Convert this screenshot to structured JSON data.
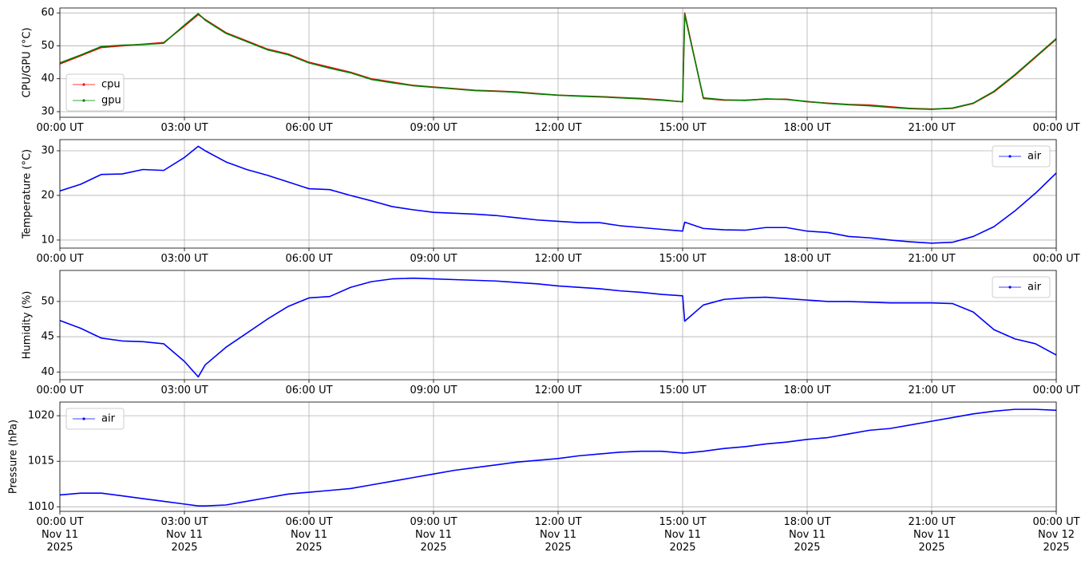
{
  "chart_data": [
    {
      "type": "line",
      "ylabel": "CPU/GPU (°C)",
      "legend": "lower left",
      "grid": true,
      "x": [
        "2025-11-11T00:00",
        "2025-11-11T00:30",
        "2025-11-11T01:00",
        "2025-11-11T01:30",
        "2025-11-11T02:00",
        "2025-11-11T02:30",
        "2025-11-11T03:00",
        "2025-11-11T03:20",
        "2025-11-11T03:30",
        "2025-11-11T04:00",
        "2025-11-11T04:30",
        "2025-11-11T05:00",
        "2025-11-11T05:30",
        "2025-11-11T06:00",
        "2025-11-11T06:30",
        "2025-11-11T07:00",
        "2025-11-11T07:30",
        "2025-11-11T08:00",
        "2025-11-11T08:30",
        "2025-11-11T09:00",
        "2025-11-11T09:30",
        "2025-11-11T10:00",
        "2025-11-11T10:30",
        "2025-11-11T11:00",
        "2025-11-11T11:30",
        "2025-11-11T12:00",
        "2025-11-11T12:30",
        "2025-11-11T13:00",
        "2025-11-11T13:30",
        "2025-11-11T14:00",
        "2025-11-11T14:30",
        "2025-11-11T15:00",
        "2025-11-11T15:03",
        "2025-11-11T15:30",
        "2025-11-11T16:00",
        "2025-11-11T16:30",
        "2025-11-11T17:00",
        "2025-11-11T17:30",
        "2025-11-11T18:00",
        "2025-11-11T18:30",
        "2025-11-11T19:00",
        "2025-11-11T19:30",
        "2025-11-11T20:00",
        "2025-11-11T20:30",
        "2025-11-11T21:00",
        "2025-11-11T21:30",
        "2025-11-11T22:00",
        "2025-11-11T22:30",
        "2025-11-11T23:00",
        "2025-11-11T23:30",
        "2025-11-12T00:00"
      ],
      "series": [
        {
          "name": "cpu",
          "color": "#ff0000",
          "values": [
            44.5,
            47,
            49.5,
            50,
            50.5,
            51,
            56,
            59.5,
            58,
            54,
            51.5,
            49,
            47.5,
            45,
            43.5,
            42,
            40,
            39,
            38,
            37.5,
            37,
            36.5,
            36.3,
            36,
            35.5,
            35,
            34.8,
            34.6,
            34.3,
            34,
            33.6,
            33,
            60,
            34,
            33.5,
            33.5,
            33.8,
            33.8,
            33,
            32.6,
            32.2,
            32,
            31.5,
            31,
            30.8,
            31,
            32.5,
            36,
            41,
            46.5,
            52
          ]
        },
        {
          "name": "gpu",
          "color": "#008000",
          "values": [
            44.8,
            47.2,
            49.8,
            50.2,
            50.4,
            50.8,
            56.3,
            59.8,
            57.8,
            53.8,
            51.3,
            48.8,
            47.3,
            44.8,
            43.2,
            41.8,
            39.8,
            38.8,
            37.9,
            37.4,
            36.9,
            36.4,
            36.2,
            35.9,
            35.4,
            35,
            34.7,
            34.5,
            34.2,
            33.9,
            33.5,
            33,
            59.5,
            34.2,
            33.6,
            33.4,
            33.9,
            33.7,
            33.1,
            32.5,
            32.1,
            31.8,
            31.3,
            30.9,
            30.7,
            31.1,
            32.6,
            36.2,
            41.2,
            46.7,
            52.2
          ]
        }
      ],
      "xlim": [
        "2025-11-11T00:00",
        "2025-11-12T00:00"
      ],
      "xticks": [
        {
          "value": "2025-11-11T00:00",
          "label": "00:00 UT"
        },
        {
          "value": "2025-11-11T03:00",
          "label": "03:00 UT"
        },
        {
          "value": "2025-11-11T06:00",
          "label": "06:00 UT"
        },
        {
          "value": "2025-11-11T09:00",
          "label": "09:00 UT"
        },
        {
          "value": "2025-11-11T12:00",
          "label": "12:00 UT"
        },
        {
          "value": "2025-11-11T15:00",
          "label": "15:00 UT"
        },
        {
          "value": "2025-11-11T18:00",
          "label": "18:00 UT"
        },
        {
          "value": "2025-11-11T21:00",
          "label": "21:00 UT"
        },
        {
          "value": "2025-11-12T00:00",
          "label": "00:00 UT"
        }
      ],
      "ylim": [
        28.3,
        61.5
      ],
      "yticks": [
        30,
        40,
        50,
        60
      ]
    },
    {
      "type": "line",
      "ylabel": "Temperature (°C)",
      "legend": "upper right",
      "grid": true,
      "x": [
        "2025-11-11T00:00",
        "2025-11-11T00:30",
        "2025-11-11T01:00",
        "2025-11-11T01:30",
        "2025-11-11T02:00",
        "2025-11-11T02:30",
        "2025-11-11T03:00",
        "2025-11-11T03:20",
        "2025-11-11T03:30",
        "2025-11-11T04:00",
        "2025-11-11T04:30",
        "2025-11-11T05:00",
        "2025-11-11T05:30",
        "2025-11-11T06:00",
        "2025-11-11T06:30",
        "2025-11-11T07:00",
        "2025-11-11T07:30",
        "2025-11-11T08:00",
        "2025-11-11T08:30",
        "2025-11-11T09:00",
        "2025-11-11T09:30",
        "2025-11-11T10:00",
        "2025-11-11T10:30",
        "2025-11-11T11:00",
        "2025-11-11T11:30",
        "2025-11-11T12:00",
        "2025-11-11T12:30",
        "2025-11-11T13:00",
        "2025-11-11T13:30",
        "2025-11-11T14:00",
        "2025-11-11T14:30",
        "2025-11-11T15:00",
        "2025-11-11T15:03",
        "2025-11-11T15:30",
        "2025-11-11T16:00",
        "2025-11-11T16:30",
        "2025-11-11T17:00",
        "2025-11-11T17:30",
        "2025-11-11T18:00",
        "2025-11-11T18:30",
        "2025-11-11T19:00",
        "2025-11-11T19:30",
        "2025-11-11T20:00",
        "2025-11-11T20:30",
        "2025-11-11T21:00",
        "2025-11-11T21:30",
        "2025-11-11T22:00",
        "2025-11-11T22:30",
        "2025-11-11T23:00",
        "2025-11-11T23:30",
        "2025-11-12T00:00"
      ],
      "series": [
        {
          "name": "air",
          "color": "#0000ff",
          "values": [
            21,
            22.5,
            24.7,
            24.8,
            25.8,
            25.6,
            28.5,
            31,
            30,
            27.5,
            25.8,
            24.5,
            23,
            21.5,
            21.3,
            20,
            18.8,
            17.5,
            16.8,
            16.2,
            16,
            15.8,
            15.5,
            15,
            14.5,
            14.2,
            13.9,
            13.9,
            13.2,
            12.8,
            12.4,
            12,
            14,
            12.6,
            12.3,
            12.2,
            12.8,
            12.8,
            12,
            11.7,
            10.8,
            10.5,
            10,
            9.6,
            9.3,
            9.5,
            10.8,
            13,
            16.5,
            20.5,
            25
          ]
        }
      ],
      "xlim": [
        "2025-11-11T00:00",
        "2025-11-12T00:00"
      ],
      "xticks": [
        {
          "value": "2025-11-11T00:00",
          "label": "00:00 UT"
        },
        {
          "value": "2025-11-11T03:00",
          "label": "03:00 UT"
        },
        {
          "value": "2025-11-11T06:00",
          "label": "06:00 UT"
        },
        {
          "value": "2025-11-11T09:00",
          "label": "09:00 UT"
        },
        {
          "value": "2025-11-11T12:00",
          "label": "12:00 UT"
        },
        {
          "value": "2025-11-11T15:00",
          "label": "15:00 UT"
        },
        {
          "value": "2025-11-11T18:00",
          "label": "18:00 UT"
        },
        {
          "value": "2025-11-11T21:00",
          "label": "21:00 UT"
        },
        {
          "value": "2025-11-12T00:00",
          "label": "00:00 UT"
        }
      ],
      "ylim": [
        8.2,
        32.5
      ],
      "yticks": [
        10,
        20,
        30
      ]
    },
    {
      "type": "line",
      "ylabel": "Humidity (%)",
      "legend": "upper right",
      "grid": true,
      "x": [
        "2025-11-11T00:00",
        "2025-11-11T00:30",
        "2025-11-11T01:00",
        "2025-11-11T01:30",
        "2025-11-11T02:00",
        "2025-11-11T02:30",
        "2025-11-11T03:00",
        "2025-11-11T03:20",
        "2025-11-11T03:30",
        "2025-11-11T04:00",
        "2025-11-11T04:30",
        "2025-11-11T05:00",
        "2025-11-11T05:30",
        "2025-11-11T06:00",
        "2025-11-11T06:30",
        "2025-11-11T07:00",
        "2025-11-11T07:30",
        "2025-11-11T08:00",
        "2025-11-11T08:30",
        "2025-11-11T09:00",
        "2025-11-11T09:30",
        "2025-11-11T10:00",
        "2025-11-11T10:30",
        "2025-11-11T11:00",
        "2025-11-11T11:30",
        "2025-11-11T12:00",
        "2025-11-11T12:30",
        "2025-11-11T13:00",
        "2025-11-11T13:30",
        "2025-11-11T14:00",
        "2025-11-11T14:30",
        "2025-11-11T15:00",
        "2025-11-11T15:03",
        "2025-11-11T15:30",
        "2025-11-11T16:00",
        "2025-11-11T16:30",
        "2025-11-11T17:00",
        "2025-11-11T17:30",
        "2025-11-11T18:00",
        "2025-11-11T18:30",
        "2025-11-11T19:00",
        "2025-11-11T19:30",
        "2025-11-11T20:00",
        "2025-11-11T20:30",
        "2025-11-11T21:00",
        "2025-11-11T21:30",
        "2025-11-11T22:00",
        "2025-11-11T22:30",
        "2025-11-11T23:00",
        "2025-11-11T23:30",
        "2025-11-12T00:00"
      ],
      "series": [
        {
          "name": "air",
          "color": "#0000ff",
          "values": [
            47.3,
            46.2,
            44.8,
            44.4,
            44.3,
            44,
            41.5,
            39.3,
            41,
            43.5,
            45.5,
            47.5,
            49.3,
            50.5,
            50.7,
            52,
            52.8,
            53.2,
            53.3,
            53.2,
            53.1,
            53,
            52.9,
            52.7,
            52.5,
            52.2,
            52,
            51.8,
            51.5,
            51.3,
            51,
            50.8,
            47.2,
            49.5,
            50.3,
            50.5,
            50.6,
            50.4,
            50.2,
            50,
            50,
            49.9,
            49.8,
            49.8,
            49.8,
            49.7,
            48.5,
            46,
            44.7,
            44,
            42.4
          ]
        }
      ],
      "xlim": [
        "2025-11-11T00:00",
        "2025-11-12T00:00"
      ],
      "xticks": [
        {
          "value": "2025-11-11T00:00",
          "label": "00:00 UT"
        },
        {
          "value": "2025-11-11T03:00",
          "label": "03:00 UT"
        },
        {
          "value": "2025-11-11T06:00",
          "label": "06:00 UT"
        },
        {
          "value": "2025-11-11T09:00",
          "label": "09:00 UT"
        },
        {
          "value": "2025-11-11T12:00",
          "label": "12:00 UT"
        },
        {
          "value": "2025-11-11T15:00",
          "label": "15:00 UT"
        },
        {
          "value": "2025-11-11T18:00",
          "label": "18:00 UT"
        },
        {
          "value": "2025-11-11T21:00",
          "label": "21:00 UT"
        },
        {
          "value": "2025-11-12T00:00",
          "label": "00:00 UT"
        }
      ],
      "ylim": [
        38.9,
        54.4
      ],
      "yticks": [
        40,
        45,
        50
      ]
    },
    {
      "type": "line",
      "ylabel": "Pressure (hPa)",
      "legend": "upper left",
      "grid": true,
      "x": [
        "2025-11-11T00:00",
        "2025-11-11T00:30",
        "2025-11-11T01:00",
        "2025-11-11T01:30",
        "2025-11-11T02:00",
        "2025-11-11T02:30",
        "2025-11-11T03:00",
        "2025-11-11T03:20",
        "2025-11-11T03:30",
        "2025-11-11T04:00",
        "2025-11-11T04:30",
        "2025-11-11T05:00",
        "2025-11-11T05:30",
        "2025-11-11T06:00",
        "2025-11-11T06:30",
        "2025-11-11T07:00",
        "2025-11-11T07:30",
        "2025-11-11T08:00",
        "2025-11-11T08:30",
        "2025-11-11T09:00",
        "2025-11-11T09:30",
        "2025-11-11T10:00",
        "2025-11-11T10:30",
        "2025-11-11T11:00",
        "2025-11-11T11:30",
        "2025-11-11T12:00",
        "2025-11-11T12:30",
        "2025-11-11T13:00",
        "2025-11-11T13:30",
        "2025-11-11T14:00",
        "2025-11-11T14:30",
        "2025-11-11T15:00",
        "2025-11-11T15:03",
        "2025-11-11T15:30",
        "2025-11-11T16:00",
        "2025-11-11T16:30",
        "2025-11-11T17:00",
        "2025-11-11T17:30",
        "2025-11-11T18:00",
        "2025-11-11T18:30",
        "2025-11-11T19:00",
        "2025-11-11T19:30",
        "2025-11-11T20:00",
        "2025-11-11T20:30",
        "2025-11-11T21:00",
        "2025-11-11T21:30",
        "2025-11-11T22:00",
        "2025-11-11T22:30",
        "2025-11-11T23:00",
        "2025-11-11T23:30",
        "2025-11-12T00:00"
      ],
      "series": [
        {
          "name": "air",
          "color": "#0000ff",
          "values": [
            1011.3,
            1011.5,
            1011.5,
            1011.2,
            1010.9,
            1010.6,
            1010.3,
            1010.1,
            1010.1,
            1010.2,
            1010.6,
            1011,
            1011.4,
            1011.6,
            1011.8,
            1012,
            1012.4,
            1012.8,
            1013.2,
            1013.6,
            1014,
            1014.3,
            1014.6,
            1014.9,
            1015.1,
            1015.3,
            1015.6,
            1015.8,
            1016,
            1016.1,
            1016.1,
            1015.9,
            1015.9,
            1016.1,
            1016.4,
            1016.6,
            1016.9,
            1017.1,
            1017.4,
            1017.6,
            1018,
            1018.4,
            1018.6,
            1019,
            1019.4,
            1019.8,
            1020.2,
            1020.5,
            1020.7,
            1020.7,
            1020.6
          ]
        }
      ],
      "xlim": [
        "2025-11-11T00:00",
        "2025-11-12T00:00"
      ],
      "xticks": [
        {
          "value": "2025-11-11T00:00",
          "label": "00:00 UT\nNov 11\n2025"
        },
        {
          "value": "2025-11-11T03:00",
          "label": "03:00 UT\nNov 11\n2025"
        },
        {
          "value": "2025-11-11T06:00",
          "label": "06:00 UT\nNov 11\n2025"
        },
        {
          "value": "2025-11-11T09:00",
          "label": "09:00 UT\nNov 11\n2025"
        },
        {
          "value": "2025-11-11T12:00",
          "label": "12:00 UT\nNov 11\n2025"
        },
        {
          "value": "2025-11-11T15:00",
          "label": "15:00 UT\nNov 11\n2025"
        },
        {
          "value": "2025-11-11T18:00",
          "label": "18:00 UT\nNov 11\n2025"
        },
        {
          "value": "2025-11-11T21:00",
          "label": "21:00 UT\nNov 11\n2025"
        },
        {
          "value": "2025-11-12T00:00",
          "label": "00:00 UT\nNov 12\n2025"
        }
      ],
      "ylim": [
        1009.5,
        1021.5
      ],
      "yticks": [
        1010,
        1015,
        1020
      ]
    }
  ]
}
